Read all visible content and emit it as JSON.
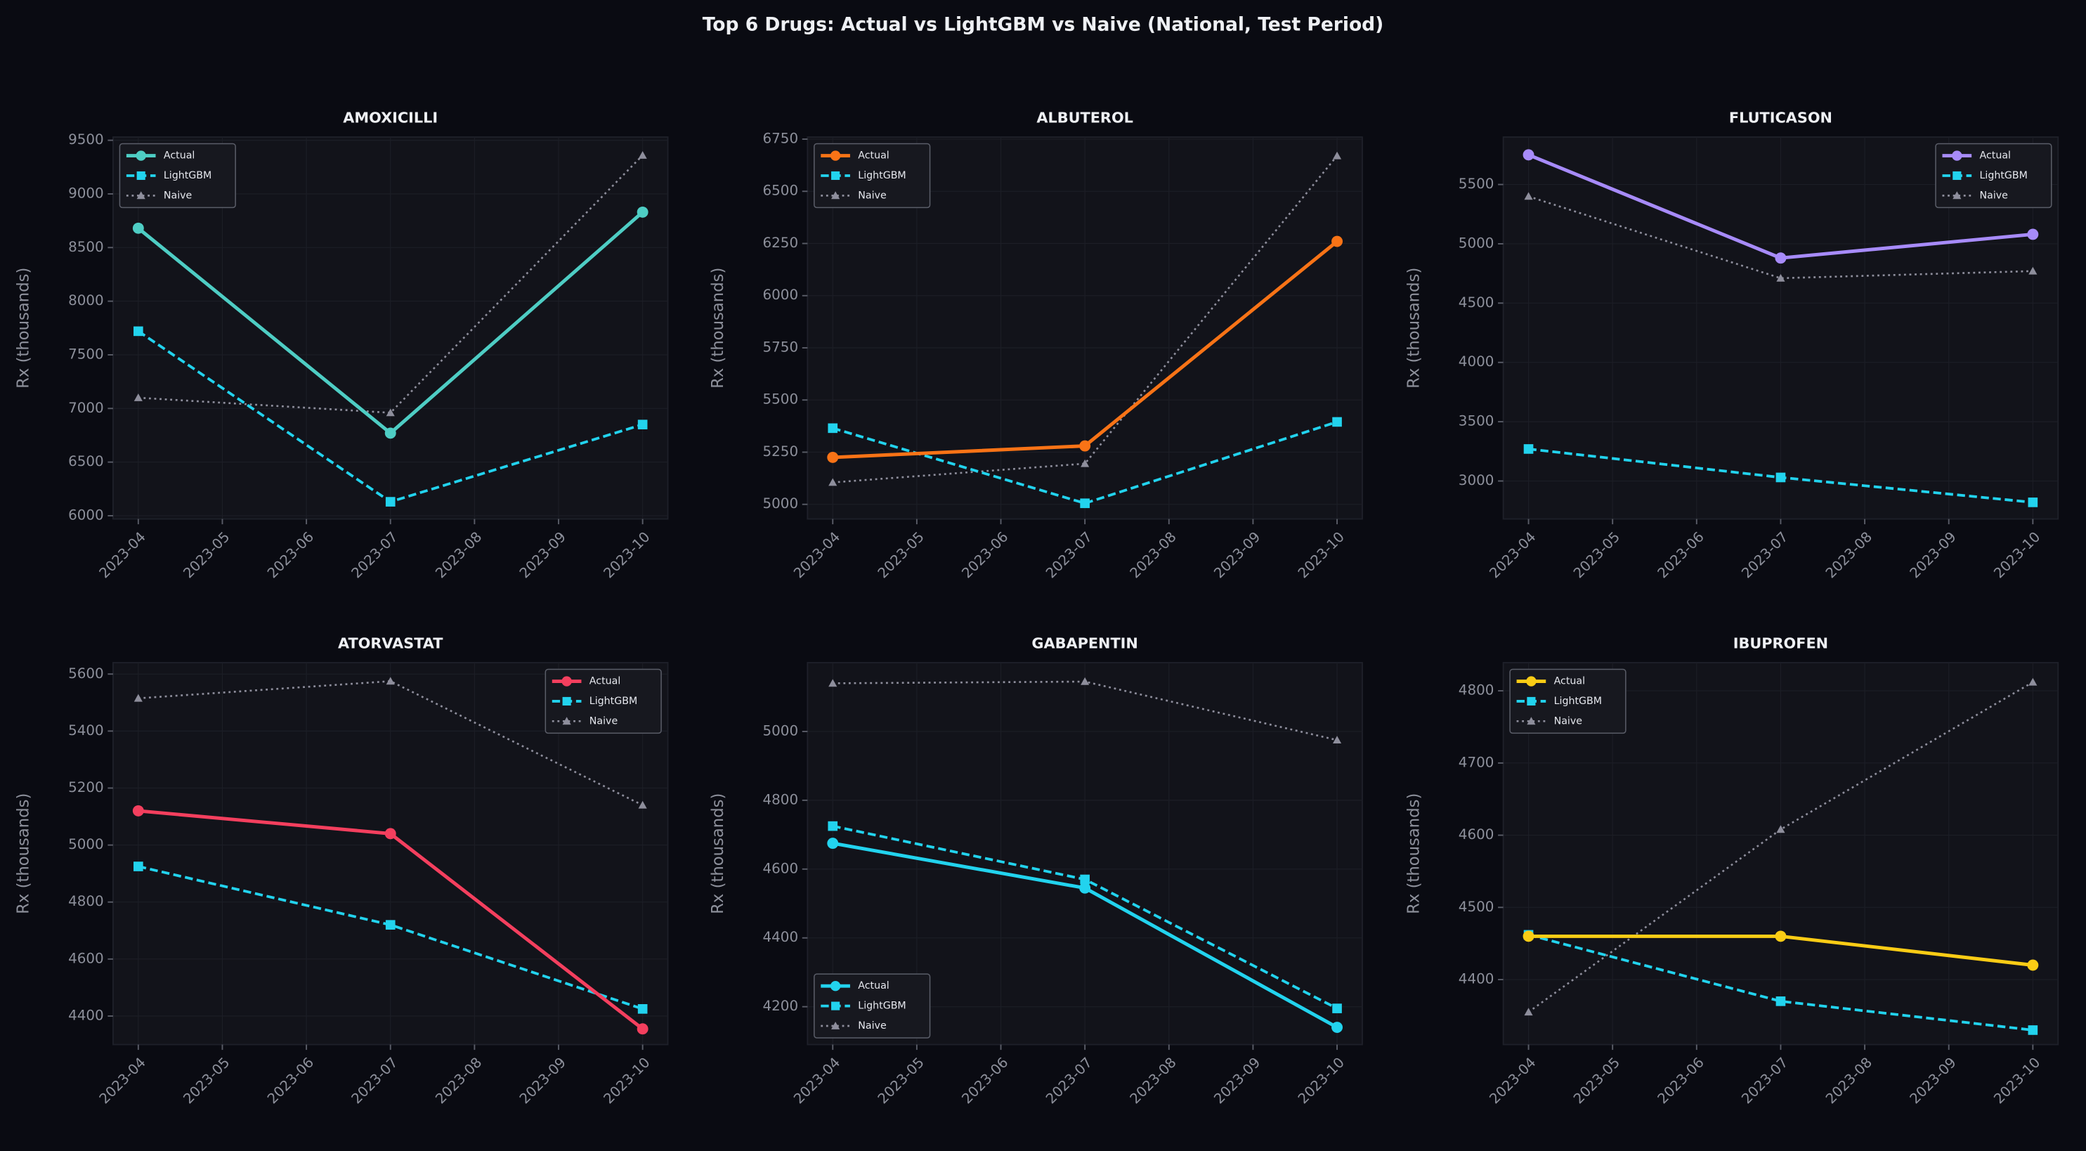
{
  "title": "Top 6 Drugs: Actual vs LightGBM vs Naive (National, Test Period)",
  "chart_data": [
    {
      "type": "line",
      "title": "AMOXICILLI",
      "ylabel": "Rx (thousands)",
      "x": [
        "2023-04",
        "2023-07",
        "2023-10"
      ],
      "xticks": [
        "2023-04",
        "2023-05",
        "2023-06",
        "2023-07",
        "2023-08",
        "2023-09",
        "2023-10"
      ],
      "ylim": [
        5970,
        9530
      ],
      "yticks": [
        6000,
        6500,
        7000,
        7500,
        8000,
        8500,
        9000,
        9500
      ],
      "grid": true,
      "legend": "upper left",
      "series": [
        {
          "name": "Actual",
          "color": "#4ecdc4",
          "marker": "circle",
          "style": "solid",
          "values": [
            8680,
            6770,
            8830
          ]
        },
        {
          "name": "LightGBM",
          "color": "#22d3ee",
          "marker": "square",
          "style": "dashed",
          "values": [
            7720,
            6130,
            6850
          ]
        },
        {
          "name": "Naive",
          "color": "#8e8e9c",
          "marker": "triangle",
          "style": "dotted",
          "values": [
            7100,
            6960,
            9360
          ]
        }
      ]
    },
    {
      "type": "line",
      "title": "ALBUTEROL",
      "ylabel": "Rx (thousands)",
      "x": [
        "2023-04",
        "2023-07",
        "2023-10"
      ],
      "xticks": [
        "2023-04",
        "2023-05",
        "2023-06",
        "2023-07",
        "2023-08",
        "2023-09",
        "2023-10"
      ],
      "ylim": [
        4930,
        6760
      ],
      "yticks": [
        5000,
        5250,
        5500,
        5750,
        6000,
        6250,
        6500,
        6750
      ],
      "grid": true,
      "legend": "upper left",
      "series": [
        {
          "name": "Actual",
          "color": "#f97316",
          "marker": "circle",
          "style": "solid",
          "values": [
            5225,
            5280,
            6260
          ]
        },
        {
          "name": "LightGBM",
          "color": "#22d3ee",
          "marker": "square",
          "style": "dashed",
          "values": [
            5365,
            5005,
            5395
          ]
        },
        {
          "name": "Naive",
          "color": "#8e8e9c",
          "marker": "triangle",
          "style": "dotted",
          "values": [
            5105,
            5195,
            6670
          ]
        }
      ]
    },
    {
      "type": "line",
      "title": "FLUTICASON",
      "ylabel": "Rx (thousands)",
      "x": [
        "2023-04",
        "2023-07",
        "2023-10"
      ],
      "xticks": [
        "2023-04",
        "2023-05",
        "2023-06",
        "2023-07",
        "2023-08",
        "2023-09",
        "2023-10"
      ],
      "ylim": [
        2680,
        5900
      ],
      "yticks": [
        3000,
        3500,
        4000,
        4500,
        5000,
        5500
      ],
      "grid": true,
      "legend": "upper right",
      "series": [
        {
          "name": "Actual",
          "color": "#a78bfa",
          "marker": "circle",
          "style": "solid",
          "values": [
            5750,
            4880,
            5080
          ]
        },
        {
          "name": "LightGBM",
          "color": "#22d3ee",
          "marker": "square",
          "style": "dashed",
          "values": [
            3270,
            3030,
            2820
          ]
        },
        {
          "name": "Naive",
          "color": "#8e8e9c",
          "marker": "triangle",
          "style": "dotted",
          "values": [
            5400,
            4710,
            4770
          ]
        }
      ]
    },
    {
      "type": "line",
      "title": "ATORVASTAT",
      "ylabel": "Rx (thousands)",
      "x": [
        "2023-04",
        "2023-07",
        "2023-10"
      ],
      "xticks": [
        "2023-04",
        "2023-05",
        "2023-06",
        "2023-07",
        "2023-08",
        "2023-09",
        "2023-10"
      ],
      "ylim": [
        4300,
        5640
      ],
      "yticks": [
        4400,
        4600,
        4800,
        5000,
        5200,
        5400,
        5600
      ],
      "grid": true,
      "legend": "upper right",
      "series": [
        {
          "name": "Actual",
          "color": "#f43f5e",
          "marker": "circle",
          "style": "solid",
          "values": [
            5120,
            5040,
            4355
          ]
        },
        {
          "name": "LightGBM",
          "color": "#22d3ee",
          "marker": "square",
          "style": "dashed",
          "values": [
            4925,
            4720,
            4425
          ]
        },
        {
          "name": "Naive",
          "color": "#8e8e9c",
          "marker": "triangle",
          "style": "dotted",
          "values": [
            5515,
            5575,
            5140
          ]
        }
      ]
    },
    {
      "type": "line",
      "title": "GABAPENTIN",
      "ylabel": "Rx (thousands)",
      "x": [
        "2023-04",
        "2023-07",
        "2023-10"
      ],
      "xticks": [
        "2023-04",
        "2023-05",
        "2023-06",
        "2023-07",
        "2023-08",
        "2023-09",
        "2023-10"
      ],
      "ylim": [
        4090,
        5200
      ],
      "yticks": [
        4200,
        4400,
        4600,
        4800,
        5000
      ],
      "grid": true,
      "legend": "lower left",
      "series": [
        {
          "name": "Actual",
          "color": "#22d3ee",
          "marker": "circle",
          "style": "solid",
          "values": [
            4675,
            4545,
            4140
          ]
        },
        {
          "name": "LightGBM",
          "color": "#22d3ee",
          "marker": "square",
          "style": "dashed",
          "values": [
            4725,
            4570,
            4195
          ]
        },
        {
          "name": "Naive",
          "color": "#8e8e9c",
          "marker": "triangle",
          "style": "dotted",
          "values": [
            5140,
            5145,
            4975
          ]
        }
      ]
    },
    {
      "type": "line",
      "title": "IBUPROFEN",
      "ylabel": "Rx (thousands)",
      "x": [
        "2023-04",
        "2023-07",
        "2023-10"
      ],
      "xticks": [
        "2023-04",
        "2023-05",
        "2023-06",
        "2023-07",
        "2023-08",
        "2023-09",
        "2023-10"
      ],
      "ylim": [
        4310,
        4839
      ],
      "yticks": [
        4400,
        4500,
        4600,
        4700,
        4800
      ],
      "grid": true,
      "legend": "upper left",
      "series": [
        {
          "name": "Actual",
          "color": "#facc15",
          "marker": "circle",
          "style": "solid",
          "values": [
            4460,
            4460,
            4420
          ]
        },
        {
          "name": "LightGBM",
          "color": "#22d3ee",
          "marker": "square",
          "style": "dashed",
          "values": [
            4462,
            4370,
            4330
          ]
        },
        {
          "name": "Naive",
          "color": "#8e8e9c",
          "marker": "triangle",
          "style": "dotted",
          "values": [
            4355,
            4608,
            4812
          ]
        }
      ]
    }
  ]
}
